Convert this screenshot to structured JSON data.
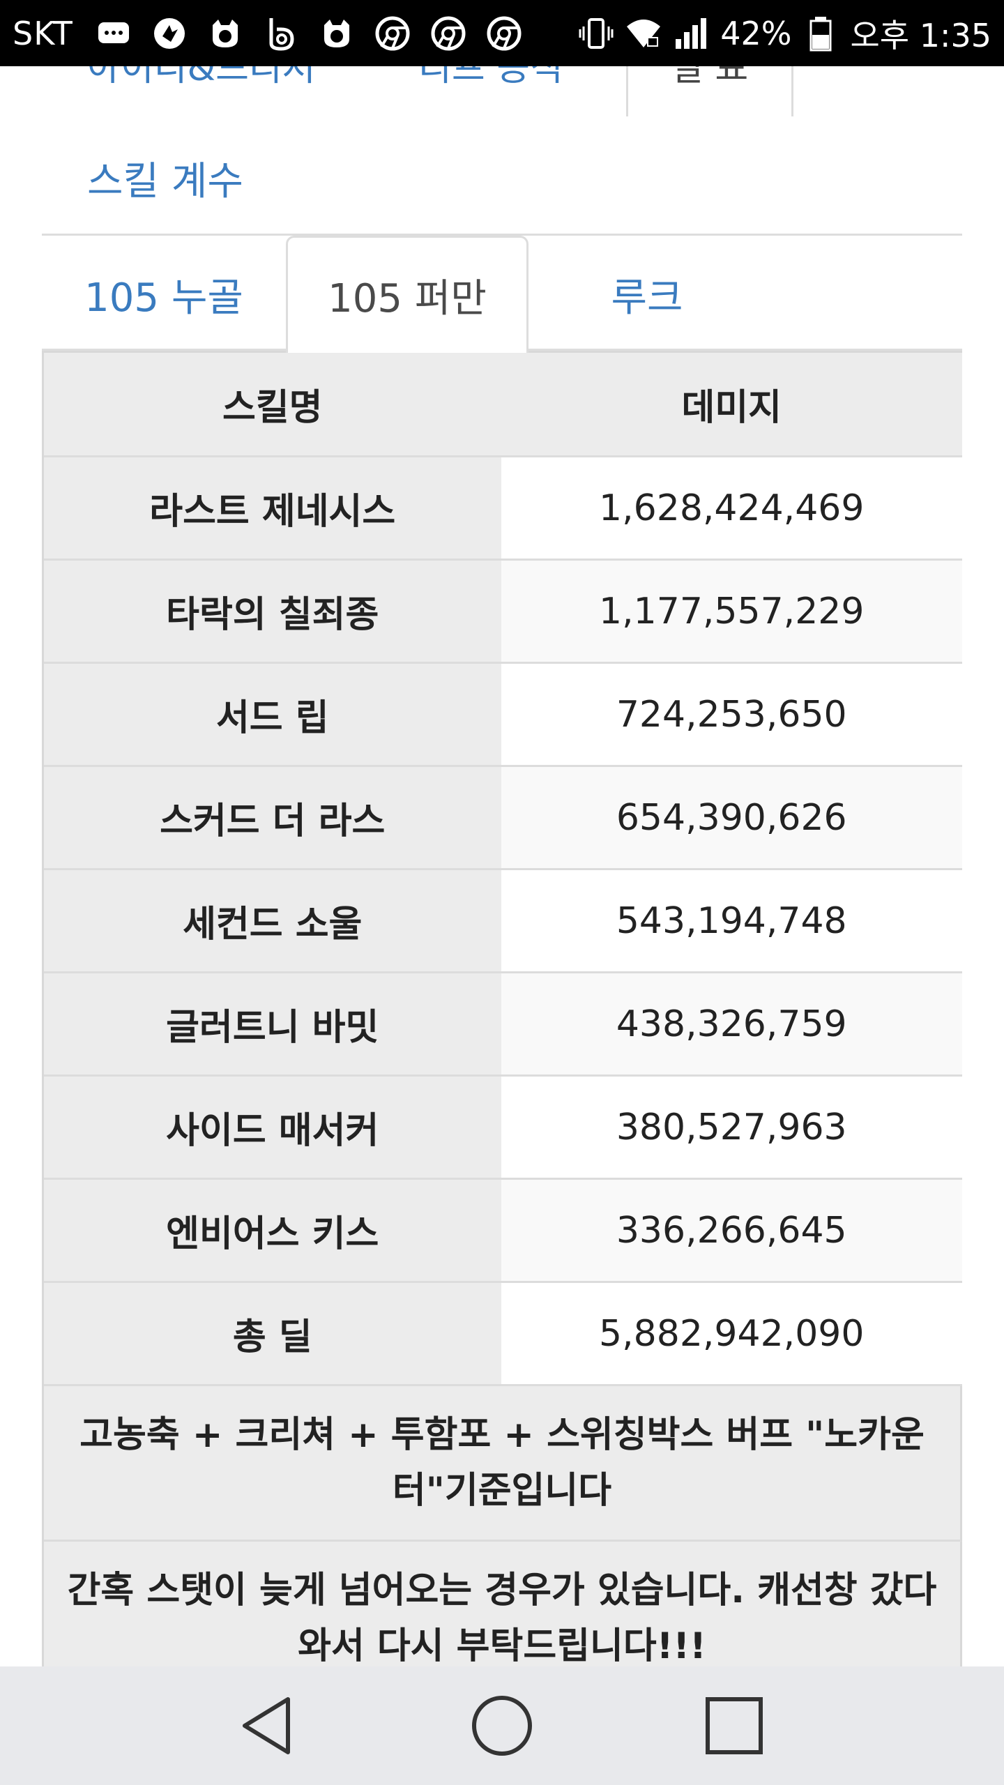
{
  "status_bar": {
    "carrier": "SKT",
    "battery": "42%",
    "time": "오후 1:35"
  },
  "top_tabs": {
    "left_cut": "아이디&드리저",
    "middle_cut": "리프 공식",
    "right_cut": "일 표"
  },
  "skill_coef_link": "스킬 계수",
  "tabs": [
    {
      "label": "105 누골"
    },
    {
      "label": "105 퍼만"
    },
    {
      "label": "루크"
    }
  ],
  "table": {
    "headers": [
      "스킬명",
      "데미지"
    ],
    "rows": [
      {
        "name": "라스트 제네시스",
        "damage": "1,628,424,469"
      },
      {
        "name": "타락의 칠죄종",
        "damage": "1,177,557,229"
      },
      {
        "name": "서드 립",
        "damage": "724,253,650"
      },
      {
        "name": "스커드 더 라스",
        "damage": "654,390,626"
      },
      {
        "name": "세컨드 소울",
        "damage": "543,194,748"
      },
      {
        "name": "글러트니 바밋",
        "damage": "438,326,759"
      },
      {
        "name": "사이드 매서커",
        "damage": "380,527,963"
      },
      {
        "name": "엔비어스 키스",
        "damage": "336,266,645"
      },
      {
        "name": "총 딜",
        "damage": "5,882,942,090"
      }
    ],
    "notes": [
      "고농축 + 크리쳐 + 투함포 + 스위칭박스 버프 \"노카운터\"기준입니다",
      "간혹 스탯이 늦게 넘어오는 경우가 있습니다. 캐선창 갔다와서 다시 부탁드립니다!!!"
    ]
  }
}
